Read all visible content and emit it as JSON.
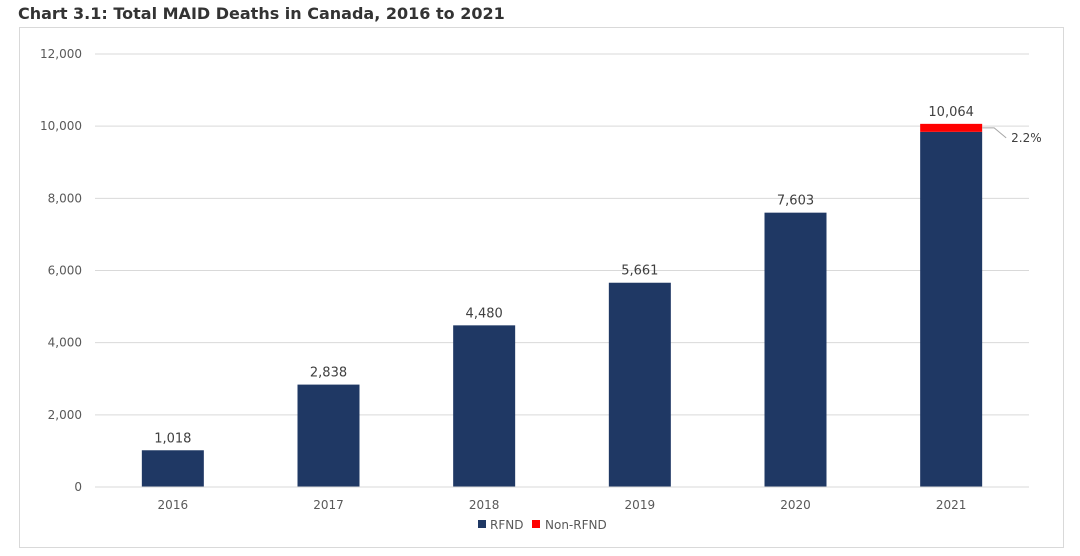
{
  "title": "Chart 3.1: Total MAID Deaths in Canada, 2016 to 2021",
  "colors": {
    "rfnd": "#1f3864",
    "non_rfnd": "#ff0000",
    "grid": "#d9d9d9",
    "axis_text": "#595959",
    "label_text": "#404040"
  },
  "chart_data": {
    "type": "bar",
    "stacked": true,
    "categories": [
      "2016",
      "2017",
      "2018",
      "2019",
      "2020",
      "2021"
    ],
    "series": [
      {
        "name": "RFND",
        "values": [
          1018,
          2838,
          4480,
          5661,
          7603,
          9843
        ]
      },
      {
        "name": "Non-RFND",
        "values": [
          0,
          0,
          0,
          0,
          0,
          221
        ]
      }
    ],
    "totals": [
      1018,
      2838,
      4480,
      5661,
      7603,
      10064
    ],
    "total_labels": [
      "1,018",
      "2,838",
      "4,480",
      "5,661",
      "7,603",
      "10,064"
    ],
    "ylim": [
      0,
      12000
    ],
    "yticks": [
      0,
      2000,
      4000,
      6000,
      8000,
      10000,
      12000
    ],
    "ytick_labels": [
      "0",
      "2,000",
      "4,000",
      "6,000",
      "8,000",
      "10,000",
      "12,000"
    ],
    "annotation": {
      "category": "2021",
      "series": "Non-RFND",
      "text": "2.2%"
    },
    "grid": true,
    "legend": "bottom-center",
    "xlabel": "",
    "ylabel": ""
  }
}
